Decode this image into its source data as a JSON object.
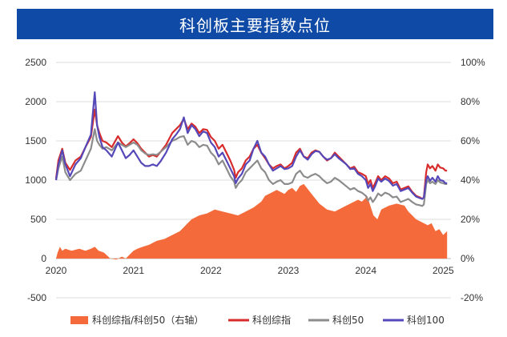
{
  "title": "科创板主要指数点位",
  "chart_data": {
    "type": "line",
    "title": "科创板主要指数点位",
    "x_ticks": [
      "2020",
      "2021",
      "2022",
      "2023",
      "2024",
      "2025"
    ],
    "x_range": [
      2020.0,
      2025.1
    ],
    "y_left": {
      "ticks": [
        "2500",
        "2000",
        "1500",
        "1000",
        "500",
        "0",
        "-500"
      ],
      "ylim": [
        -500,
        2500
      ]
    },
    "y_right": {
      "ticks": [
        "100%",
        "80%",
        "60%",
        "40%",
        "20%",
        "0%",
        "-20%"
      ],
      "ylim": [
        -20,
        100
      ],
      "unit": "%"
    },
    "grid": true,
    "legend_position": "bottom",
    "series": [
      {
        "name": "科创综指/科创50（右轴）",
        "type": "area",
        "axis": "right",
        "color": "#f46a3a",
        "x": [
          2020.0,
          2020.02,
          2020.05,
          2020.08,
          2020.12,
          2020.2,
          2020.3,
          2020.38,
          2020.45,
          2020.5,
          2020.55,
          2020.62,
          2020.7,
          2020.78,
          2020.85,
          2020.9,
          2020.95,
          2021.0,
          2021.05,
          2021.12,
          2021.2,
          2021.3,
          2021.4,
          2021.5,
          2021.6,
          2021.7,
          2021.75,
          2021.85,
          2021.95,
          2022.05,
          2022.15,
          2022.25,
          2022.35,
          2022.45,
          2022.55,
          2022.65,
          2022.7,
          2022.75,
          2022.8,
          2022.85,
          2022.9,
          2022.95,
          2023.0,
          2023.05,
          2023.1,
          2023.15,
          2023.2,
          2023.3,
          2023.4,
          2023.5,
          2023.6,
          2023.7,
          2023.8,
          2023.9,
          2023.95,
          2024.0,
          2024.02,
          2024.05,
          2024.1,
          2024.15,
          2024.2,
          2024.3,
          2024.4,
          2024.5,
          2024.55,
          2024.6,
          2024.65,
          2024.7,
          2024.75,
          2024.8,
          2024.85,
          2024.9,
          2024.95,
          2025.0,
          2025.05
        ],
        "values": [
          0,
          3,
          6,
          4,
          5,
          4,
          5,
          4,
          5,
          6,
          4,
          3,
          0,
          -0.5,
          1,
          0,
          2,
          4,
          5,
          6,
          7,
          9,
          10,
          12,
          14,
          18,
          20,
          22,
          23,
          25,
          24,
          23,
          22,
          24,
          26,
          29,
          32,
          33,
          34,
          35,
          34,
          33,
          35,
          36,
          34,
          37,
          38,
          33,
          28,
          25,
          24,
          26,
          28,
          30,
          29,
          31,
          32,
          28,
          22,
          20,
          25,
          27,
          28,
          27,
          24,
          22,
          20,
          19,
          18,
          17,
          18,
          14,
          15,
          12,
          14
        ]
      },
      {
        "name": "科创综指",
        "type": "line",
        "axis": "left",
        "color": "#d82c2c",
        "x": [
          2020.0,
          2020.03,
          2020.08,
          2020.12,
          2020.18,
          2020.25,
          2020.32,
          2020.38,
          2020.45,
          2020.5,
          2020.53,
          2020.56,
          2020.6,
          2020.65,
          2020.72,
          2020.8,
          2020.85,
          2020.9,
          2020.95,
          2021.0,
          2021.05,
          2021.1,
          2021.15,
          2021.2,
          2021.25,
          2021.3,
          2021.35,
          2021.42,
          2021.5,
          2021.55,
          2021.6,
          2021.65,
          2021.7,
          2021.75,
          2021.8,
          2021.85,
          2021.9,
          2021.95,
          2022.0,
          2022.05,
          2022.1,
          2022.15,
          2022.2,
          2022.25,
          2022.3,
          2022.32,
          2022.35,
          2022.4,
          2022.45,
          2022.5,
          2022.55,
          2022.6,
          2022.65,
          2022.7,
          2022.75,
          2022.8,
          2022.85,
          2022.9,
          2022.95,
          2023.0,
          2023.05,
          2023.1,
          2023.15,
          2023.2,
          2023.25,
          2023.3,
          2023.35,
          2023.4,
          2023.45,
          2023.5,
          2023.55,
          2023.6,
          2023.65,
          2023.7,
          2023.75,
          2023.8,
          2023.85,
          2023.9,
          2023.95,
          2024.0,
          2024.03,
          2024.06,
          2024.09,
          2024.12,
          2024.16,
          2024.2,
          2024.25,
          2024.3,
          2024.35,
          2024.4,
          2024.45,
          2024.5,
          2024.55,
          2024.6,
          2024.65,
          2024.7,
          2024.73,
          2024.75,
          2024.78,
          2024.8,
          2024.83,
          2024.86,
          2024.9,
          2024.93,
          2024.96,
          2025.0,
          2025.03,
          2025.05
        ],
        "values": [
          1020,
          1250,
          1400,
          1220,
          1130,
          1250,
          1300,
          1420,
          1550,
          1900,
          1700,
          1600,
          1500,
          1480,
          1420,
          1560,
          1480,
          1430,
          1470,
          1520,
          1470,
          1400,
          1350,
          1300,
          1320,
          1300,
          1360,
          1450,
          1600,
          1650,
          1700,
          1780,
          1650,
          1720,
          1680,
          1600,
          1650,
          1640,
          1550,
          1500,
          1400,
          1450,
          1350,
          1250,
          1130,
          1030,
          1100,
          1150,
          1250,
          1300,
          1400,
          1450,
          1350,
          1280,
          1200,
          1150,
          1180,
          1200,
          1150,
          1180,
          1220,
          1350,
          1400,
          1300,
          1280,
          1350,
          1380,
          1360,
          1300,
          1250,
          1280,
          1350,
          1300,
          1250,
          1200,
          1150,
          1170,
          1100,
          1080,
          1050,
          950,
          1000,
          900,
          960,
          1050,
          1000,
          1050,
          1020,
          960,
          980,
          880,
          900,
          920,
          850,
          800,
          780,
          760,
          780,
          1100,
          1200,
          1150,
          1180,
          1120,
          1200,
          1160,
          1150,
          1120,
          1120
        ]
      },
      {
        "name": "科创50",
        "type": "line",
        "axis": "left",
        "color": "#8c8c8c",
        "x": [
          2020.0,
          2020.03,
          2020.08,
          2020.12,
          2020.18,
          2020.25,
          2020.32,
          2020.38,
          2020.45,
          2020.5,
          2020.53,
          2020.56,
          2020.6,
          2020.65,
          2020.72,
          2020.8,
          2020.85,
          2020.9,
          2020.95,
          2021.0,
          2021.05,
          2021.1,
          2021.15,
          2021.2,
          2021.25,
          2021.3,
          2021.35,
          2021.42,
          2021.5,
          2021.55,
          2021.6,
          2021.65,
          2021.7,
          2021.75,
          2021.8,
          2021.85,
          2021.9,
          2021.95,
          2022.0,
          2022.05,
          2022.1,
          2022.15,
          2022.2,
          2022.25,
          2022.3,
          2022.32,
          2022.35,
          2022.4,
          2022.45,
          2022.5,
          2022.55,
          2022.6,
          2022.65,
          2022.7,
          2022.75,
          2022.8,
          2022.85,
          2022.9,
          2022.95,
          2023.0,
          2023.05,
          2023.1,
          2023.15,
          2023.2,
          2023.25,
          2023.3,
          2023.35,
          2023.4,
          2023.45,
          2023.5,
          2023.55,
          2023.6,
          2023.65,
          2023.7,
          2023.75,
          2023.8,
          2023.85,
          2023.9,
          2023.95,
          2024.0,
          2024.03,
          2024.06,
          2024.09,
          2024.12,
          2024.16,
          2024.2,
          2024.25,
          2024.3,
          2024.35,
          2024.4,
          2024.45,
          2024.5,
          2024.55,
          2024.6,
          2024.65,
          2024.7,
          2024.73,
          2024.75,
          2024.78,
          2024.8,
          2024.83,
          2024.86,
          2024.9,
          2024.93,
          2024.96,
          2025.0,
          2025.03,
          2025.05
        ],
        "values": [
          1000,
          1150,
          1300,
          1100,
          1000,
          1080,
          1120,
          1250,
          1400,
          1650,
          1500,
          1450,
          1400,
          1420,
          1380,
          1480,
          1450,
          1420,
          1450,
          1480,
          1450,
          1380,
          1340,
          1320,
          1330,
          1320,
          1360,
          1420,
          1500,
          1520,
          1550,
          1560,
          1450,
          1500,
          1480,
          1420,
          1450,
          1440,
          1350,
          1300,
          1200,
          1250,
          1150,
          1050,
          980,
          900,
          950,
          1000,
          1100,
          1150,
          1200,
          1250,
          1150,
          1100,
          1000,
          950,
          980,
          1000,
          950,
          950,
          970,
          1080,
          1120,
          1050,
          1030,
          1060,
          1080,
          1050,
          1000,
          960,
          980,
          1030,
          1000,
          960,
          920,
          880,
          900,
          860,
          840,
          800,
          740,
          780,
          720,
          760,
          830,
          800,
          840,
          820,
          780,
          790,
          720,
          740,
          760,
          720,
          690,
          680,
          670,
          690,
          950,
          1000,
          960,
          980,
          950,
          1000,
          970,
          960,
          950,
          950
        ]
      },
      {
        "name": "科创100",
        "type": "line",
        "axis": "left",
        "color": "#5548b8",
        "x": [
          2020.0,
          2020.03,
          2020.08,
          2020.12,
          2020.18,
          2020.25,
          2020.32,
          2020.38,
          2020.45,
          2020.5,
          2020.53,
          2020.56,
          2020.6,
          2020.65,
          2020.72,
          2020.8,
          2020.85,
          2020.9,
          2020.95,
          2021.0,
          2021.05,
          2021.1,
          2021.15,
          2021.2,
          2021.25,
          2021.3,
          2021.35,
          2021.42,
          2021.5,
          2021.55,
          2021.6,
          2021.65,
          2021.7,
          2021.75,
          2021.8,
          2021.85,
          2021.9,
          2021.95,
          2022.0,
          2022.05,
          2022.1,
          2022.15,
          2022.2,
          2022.25,
          2022.3,
          2022.32,
          2022.35,
          2022.4,
          2022.45,
          2022.5,
          2022.55,
          2022.6,
          2022.65,
          2022.7,
          2022.75,
          2022.8,
          2022.85,
          2022.9,
          2022.95,
          2023.0,
          2023.05,
          2023.1,
          2023.15,
          2023.2,
          2023.25,
          2023.3,
          2023.35,
          2023.4,
          2023.45,
          2023.5,
          2023.55,
          2023.6,
          2023.65,
          2023.7,
          2023.75,
          2023.8,
          2023.85,
          2023.9,
          2023.95,
          2024.0,
          2024.03,
          2024.06,
          2024.09,
          2024.12,
          2024.16,
          2024.2,
          2024.25,
          2024.3,
          2024.35,
          2024.4,
          2024.45,
          2024.5,
          2024.55,
          2024.6,
          2024.65,
          2024.7,
          2024.73,
          2024.75,
          2024.78,
          2024.8,
          2024.83,
          2024.86,
          2024.9,
          2024.93,
          2024.96,
          2025.0,
          2025.03,
          2025.05
        ],
        "values": [
          1000,
          1200,
          1380,
          1200,
          1050,
          1200,
          1280,
          1420,
          1580,
          2120,
          1700,
          1550,
          1420,
          1380,
          1300,
          1480,
          1380,
          1280,
          1320,
          1380,
          1300,
          1220,
          1180,
          1180,
          1200,
          1180,
          1240,
          1350,
          1520,
          1580,
          1650,
          1800,
          1600,
          1700,
          1650,
          1560,
          1620,
          1600,
          1480,
          1420,
          1300,
          1350,
          1250,
          1150,
          1050,
          960,
          1020,
          1080,
          1200,
          1250,
          1400,
          1500,
          1350,
          1300,
          1200,
          1120,
          1150,
          1180,
          1140,
          1150,
          1180,
          1300,
          1380,
          1300,
          1260,
          1330,
          1370,
          1360,
          1300,
          1260,
          1280,
          1330,
          1280,
          1240,
          1200,
          1140,
          1150,
          1080,
          1050,
          1000,
          900,
          950,
          860,
          920,
          1020,
          980,
          1020,
          990,
          930,
          950,
          860,
          880,
          900,
          840,
          790,
          770,
          760,
          780,
          1000,
          1050,
          990,
          1030,
          980,
          1050,
          1000,
          990,
          960,
          960
        ]
      }
    ]
  }
}
